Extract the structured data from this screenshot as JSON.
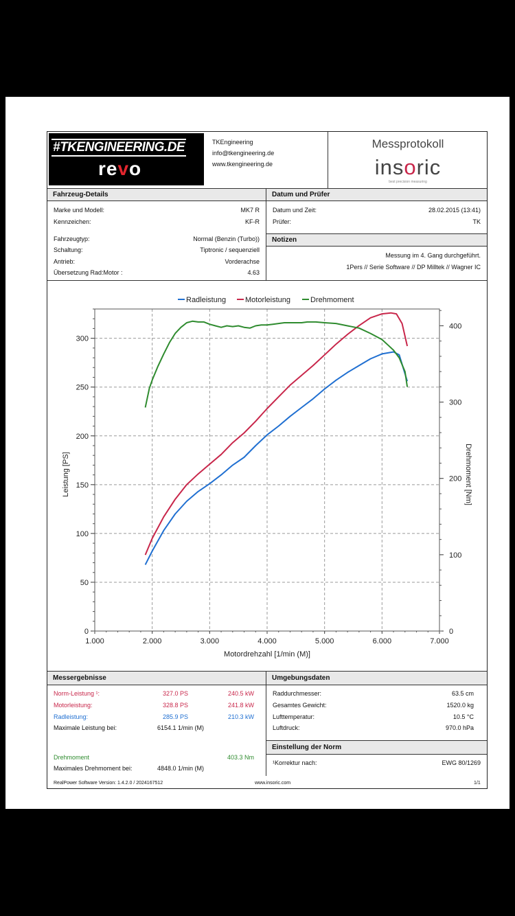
{
  "header": {
    "logo_tk": "#TKENGINEERING.DE",
    "logo_revo": "revo",
    "contact_name": "TKEngineering",
    "contact_email": "info@tkengineering.de",
    "contact_web": "www.tkengineering.de",
    "title": "Messprotokoll",
    "brand": "insoric",
    "brand_tagline": "best precision measuring"
  },
  "vehicle": {
    "title": "Fahrzeug-Details",
    "rows": [
      {
        "label": "Marke und Modell:",
        "value": "MK7 R"
      },
      {
        "label": "Kennzeichen:",
        "value": "KF-R"
      },
      {
        "label": "Fahrzeugtyp:",
        "value": "Normal (Benzin (Turbo))"
      },
      {
        "label": "Schaltung:",
        "value": "Tiptronic / sequenziell"
      },
      {
        "label": "Antrieb:",
        "value": "Vorderachse"
      },
      {
        "label": "Übersetzung Rad:Motor :",
        "value": "4.63"
      }
    ]
  },
  "date": {
    "title": "Datum und Prüfer",
    "rows": [
      {
        "label": "Datum und Zeit:",
        "value": "28.02.2015 (13:41)"
      },
      {
        "label": "Prüfer:",
        "value": "TK"
      }
    ]
  },
  "notes": {
    "title": "Notizen",
    "line1": "Messung im 4. Gang durchgeführt.",
    "line2": "1Pers // Serie Software // DP Milltek // Wagner IC"
  },
  "chart_data": {
    "type": "line",
    "xlabel": "Motordrehzahl [1/min (M)]",
    "ylabel": "Leistung [PS]",
    "y2label": "Drehmoment [Nm]",
    "xlim": [
      1000,
      7000
    ],
    "ylim": [
      0,
      330
    ],
    "y2lim": [
      0,
      422
    ],
    "x_ticks": [
      "1.000",
      "2.000",
      "3.000",
      "4.000",
      "5.000",
      "6.000",
      "7.000"
    ],
    "y_ticks": [
      "0",
      "50",
      "100",
      "150",
      "200",
      "250",
      "300"
    ],
    "y2_ticks": [
      "0",
      "100",
      "200",
      "300",
      "400"
    ],
    "grid": true,
    "legend": "top",
    "series": [
      {
        "name": "Radleistung",
        "axis": "left",
        "color": "#1f6fd1",
        "x": [
          1880,
          2000,
          2200,
          2400,
          2600,
          2800,
          3000,
          3200,
          3400,
          3600,
          3800,
          4000,
          4200,
          4400,
          4600,
          4800,
          5000,
          5200,
          5400,
          5600,
          5800,
          6000,
          6200,
          6300,
          6440
        ],
        "y": [
          68,
          82,
          103,
          120,
          133,
          143,
          151,
          160,
          170,
          178,
          190,
          201,
          210,
          220,
          229,
          238,
          248,
          257,
          265,
          272,
          279,
          284,
          286,
          283,
          256
        ]
      },
      {
        "name": "Motorleistung",
        "axis": "left",
        "color": "#c8264a",
        "x": [
          1880,
          2000,
          2200,
          2400,
          2600,
          2800,
          3000,
          3200,
          3400,
          3600,
          3800,
          4000,
          4200,
          4400,
          4600,
          4800,
          5000,
          5200,
          5400,
          5600,
          5800,
          6000,
          6154,
          6250,
          6350,
          6440
        ],
        "y": [
          78,
          95,
          117,
          135,
          150,
          161,
          171,
          181,
          193,
          203,
          215,
          228,
          240,
          252,
          262,
          272,
          283,
          294,
          304,
          313,
          321,
          325,
          326,
          325,
          315,
          292
        ]
      },
      {
        "name": "Drehmoment",
        "axis": "right",
        "color": "#2e8b2e",
        "x": [
          1880,
          1950,
          2000,
          2100,
          2200,
          2300,
          2400,
          2500,
          2600,
          2700,
          2800,
          2900,
          3000,
          3100,
          3200,
          3300,
          3400,
          3500,
          3600,
          3700,
          3800,
          3900,
          4000,
          4100,
          4200,
          4300,
          4400,
          4500,
          4600,
          4700,
          4848,
          5000,
          5200,
          5400,
          5600,
          5800,
          6000,
          6100,
          6200,
          6300,
          6400,
          6440
        ],
        "y": [
          293,
          318,
          329,
          347,
          363,
          378,
          390,
          398,
          404,
          406,
          405,
          405,
          402,
          400,
          398,
          400,
          399,
          400,
          398,
          397,
          400,
          401,
          401,
          402,
          403,
          404,
          404,
          404,
          404,
          405,
          405,
          404,
          403,
          400,
          397,
          390,
          382,
          375,
          368,
          358,
          340,
          320
        ]
      }
    ]
  },
  "results": {
    "title": "Messergebnisse",
    "norm_label": "Norm-Leistung ¹:",
    "norm_ps": "327.0 PS",
    "norm_kw": "240.5 kW",
    "motor_label": "Motorleistung:",
    "motor_ps": "328.8 PS",
    "motor_kw": "241.8 kW",
    "rad_label": "Radleistung:",
    "rad_ps": "285.9 PS",
    "rad_kw": "210.3 kW",
    "max_power_label": "Maximale Leistung bei:",
    "max_power_value": "6154.1 1/min (M)",
    "torque_label": "Drehmoment",
    "torque_value": "403.3 Nm",
    "max_torque_label": "Maximales Drehmoment bei:",
    "max_torque_value": "4848.0 1/min (M)"
  },
  "environment": {
    "title": "Umgebungsdaten",
    "rows": [
      {
        "label": "Raddurchmesser:",
        "value": "63.5 cm"
      },
      {
        "label": "Gesamtes Gewicht:",
        "value": "1520.0 kg"
      },
      {
        "label": "Lufttemperatur:",
        "value": "10.5 °C"
      },
      {
        "label": "Luftdruck:",
        "value": "970.0 hPa"
      }
    ]
  },
  "norm": {
    "title": "Einstellung der Norm",
    "label": "¹Korrektur nach:",
    "value": "EWG 80/1269"
  },
  "footer": {
    "version": "RealPower Software Version: 1.4.2.0 / 2024167512",
    "url": "www.insoric.com",
    "page": "1/1"
  }
}
